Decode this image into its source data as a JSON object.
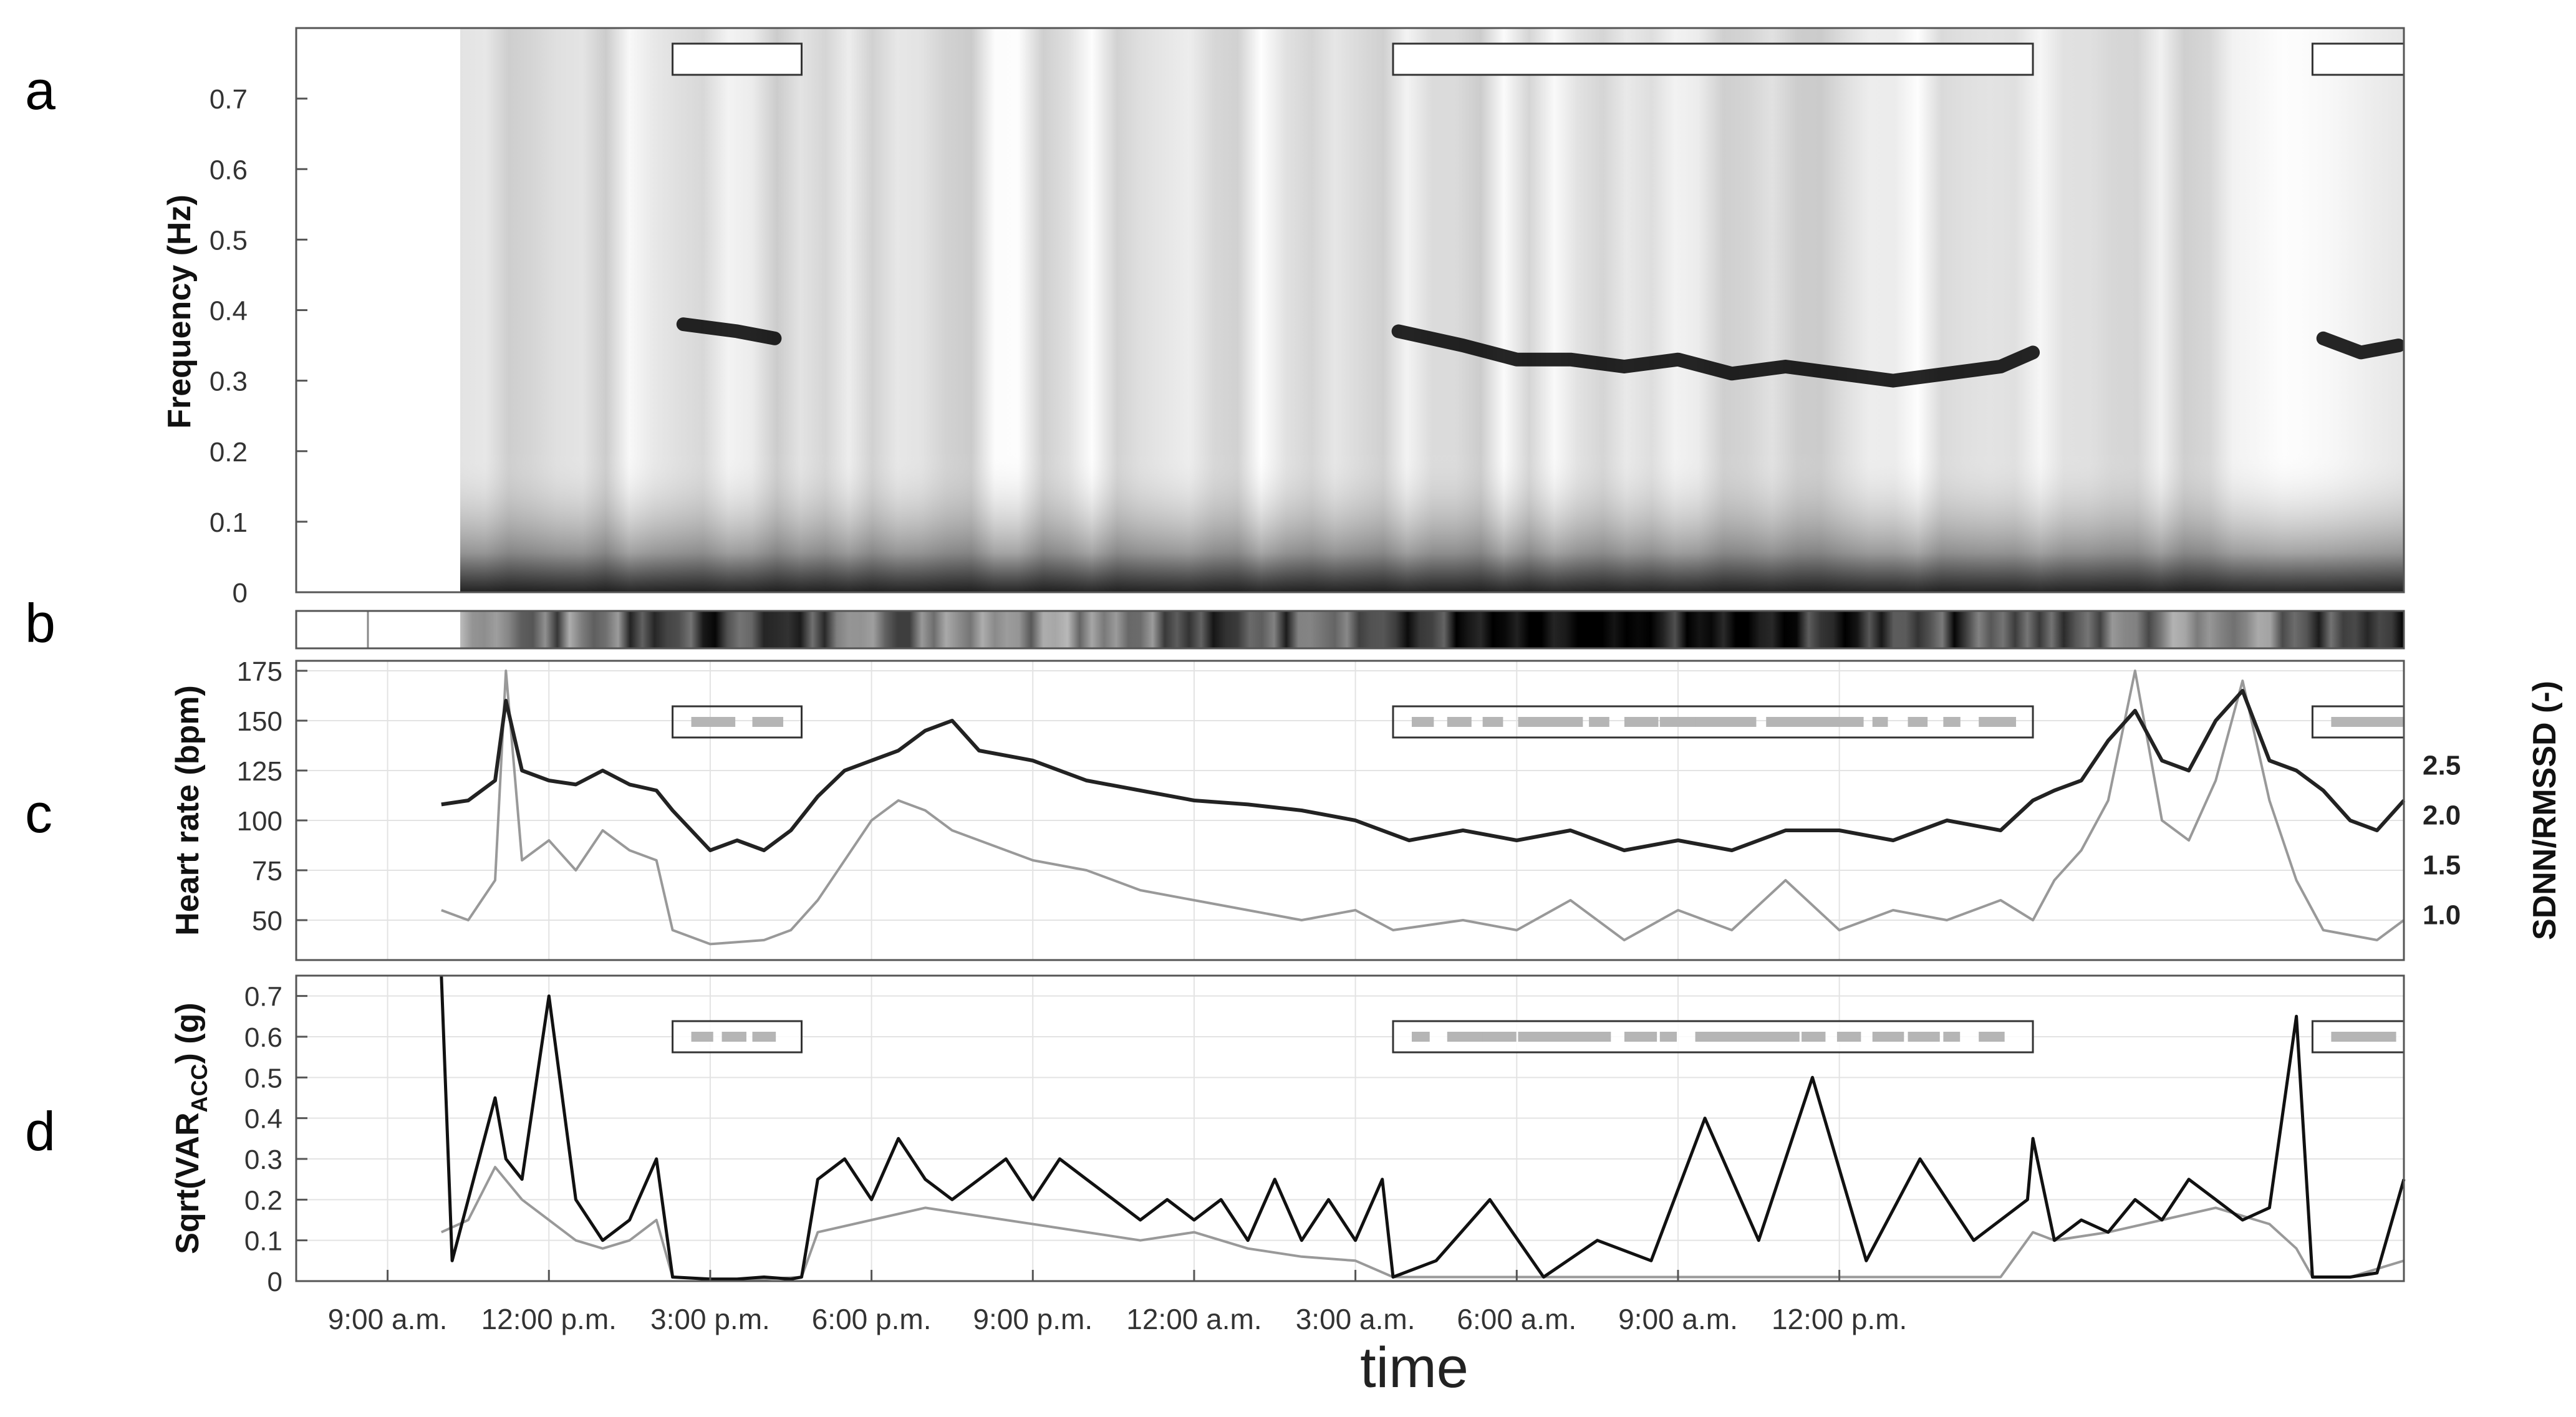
{
  "panel_letters": [
    "a",
    "b",
    "c",
    "d"
  ],
  "xlabel": "time",
  "time_ticks": [
    "9:00 a.m.",
    "12:00 p.m.",
    "3:00 p.m.",
    "6:00 p.m.",
    "9:00 p.m.",
    "12:00 a.m.",
    "3:00 a.m.",
    "6:00 a.m.",
    "9:00 a.m.",
    "12:00 p.m."
  ],
  "sleep_boxes": [
    [
      14.3,
      16.7
    ],
    [
      27.7,
      39.6
    ],
    [
      44.8,
      46.5
    ]
  ],
  "chart_data": [
    {
      "type": "heatmap",
      "panel": "a",
      "ylabel": "Frequency (Hz)",
      "ylim": [
        0,
        0.8
      ],
      "yticks": [
        "0",
        "0.1",
        "0.2",
        "0.3",
        "0.4",
        "0.5",
        "0.6",
        "0.7"
      ],
      "x_unit": "hours from 6:00 a.m. day 1",
      "xlim": [
        7.3,
        46.5
      ],
      "data_start": 10.0,
      "respiratory_band": {
        "x": [
          14.5,
          15.5,
          16.2,
          27.8,
          29.0,
          30.0,
          31.0,
          32.0,
          33.0,
          34.0,
          35.0,
          36.0,
          37.0,
          38.0,
          39.0,
          39.6,
          45.0,
          45.7,
          46.4
        ],
        "frequency_hz": [
          0.38,
          0.37,
          0.36,
          0.37,
          0.35,
          0.33,
          0.33,
          0.32,
          0.33,
          0.31,
          0.32,
          0.31,
          0.3,
          0.31,
          0.32,
          0.34,
          0.36,
          0.34,
          0.35
        ]
      },
      "grid": false
    },
    {
      "type": "heatmap",
      "panel": "b",
      "xlim": [
        7.3,
        46.5
      ],
      "intensity_x": [
        10,
        13,
        15,
        18,
        21,
        24,
        27,
        30,
        33,
        36,
        39,
        42,
        44.5,
        46
      ],
      "intensity": [
        0.5,
        0.6,
        0.8,
        0.6,
        0.5,
        0.7,
        0.7,
        0.9,
        0.9,
        0.85,
        0.7,
        0.5,
        0.6,
        0.95
      ]
    },
    {
      "type": "line",
      "panel": "c",
      "ylabel": "Heart rate (bpm)",
      "ylim": [
        30,
        180
      ],
      "yticks": [
        "50",
        "75",
        "100",
        "125",
        "150",
        "175"
      ],
      "y2label": "SDNN/RMSSD (-)",
      "y2ticks": [
        "1.0",
        "1.5",
        "2.0",
        "2.5"
      ],
      "y2_values": [
        1.0,
        1.5,
        2.0,
        2.5
      ],
      "y2_positions_bpm": [
        53,
        78,
        103,
        128
      ],
      "grid": true,
      "series": [
        {
          "color": "#222222",
          "x": [
            10.0,
            10.5,
            11.0,
            11.2,
            11.5,
            12.0,
            12.5,
            13.0,
            13.5,
            14.0,
            14.3,
            15.0,
            15.5,
            16.0,
            16.5,
            17.0,
            17.5,
            18.0,
            18.5,
            19.0,
            19.5,
            20.0,
            21.0,
            22.0,
            23.0,
            24.0,
            25.0,
            26.0,
            27.0,
            28.0,
            29.0,
            30.0,
            31.0,
            32.0,
            33.0,
            34.0,
            35.0,
            36.0,
            37.0,
            38.0,
            39.0,
            39.6,
            40.0,
            40.5,
            41.0,
            41.5,
            42.0,
            42.5,
            43.0,
            43.5,
            44.0,
            44.5,
            45.0,
            45.5,
            46.0,
            46.5
          ],
          "values": [
            108,
            110,
            120,
            160,
            125,
            120,
            118,
            125,
            118,
            115,
            105,
            85,
            90,
            85,
            95,
            112,
            125,
            130,
            135,
            145,
            150,
            135,
            130,
            120,
            115,
            110,
            108,
            105,
            100,
            90,
            95,
            90,
            95,
            85,
            90,
            85,
            95,
            95,
            90,
            100,
            95,
            110,
            115,
            120,
            140,
            155,
            130,
            125,
            150,
            165,
            130,
            125,
            115,
            100,
            95,
            110
          ]
        },
        {
          "color": "#999999",
          "x": [
            10.0,
            10.5,
            11.0,
            11.2,
            11.5,
            12.0,
            12.5,
            13.0,
            13.5,
            14.0,
            14.3,
            15.0,
            16.0,
            16.5,
            17.0,
            17.5,
            18.0,
            18.5,
            19.0,
            19.5,
            20.0,
            21.0,
            22.0,
            23.0,
            24.0,
            25.0,
            26.0,
            27.0,
            27.7,
            29.0,
            30.0,
            31.0,
            32.0,
            33.0,
            34.0,
            35.0,
            36.0,
            37.0,
            38.0,
            39.0,
            39.6,
            40.0,
            40.5,
            41.0,
            41.5,
            42.0,
            42.5,
            43.0,
            43.5,
            44.0,
            44.5,
            45.0,
            46.0,
            46.5
          ],
          "values": [
            55,
            50,
            70,
            175,
            80,
            90,
            75,
            95,
            85,
            80,
            45,
            38,
            40,
            45,
            60,
            80,
            100,
            110,
            105,
            95,
            90,
            80,
            75,
            65,
            60,
            55,
            50,
            55,
            45,
            50,
            45,
            60,
            40,
            55,
            45,
            70,
            45,
            55,
            50,
            60,
            50,
            70,
            85,
            110,
            175,
            100,
            90,
            120,
            170,
            110,
            70,
            45,
            40,
            50
          ]
        }
      ]
    },
    {
      "type": "line",
      "panel": "d",
      "ylabel": "Sqrt(VAR",
      "ylabel_sub": "ACC",
      "ylabel_end": ") (g)",
      "ylim": [
        0,
        0.75
      ],
      "yticks": [
        "0",
        "0.1",
        "0.2",
        "0.3",
        "0.4",
        "0.5",
        "0.6",
        "0.7"
      ],
      "grid": true,
      "series": [
        {
          "color": "#999999",
          "x": [
            10.0,
            10.5,
            11.0,
            11.5,
            12.0,
            12.5,
            13.0,
            13.5,
            14.0,
            14.3,
            15.0,
            16.0,
            16.7,
            17.0,
            18.0,
            19.0,
            20.0,
            21.0,
            22.0,
            23.0,
            24.0,
            25.0,
            26.0,
            27.0,
            27.7,
            30.0,
            33.0,
            36.0,
            39.0,
            39.6,
            40.0,
            41.0,
            42.0,
            43.0,
            44.0,
            44.5,
            44.8,
            45.5,
            46.5
          ],
          "values": [
            0.12,
            0.15,
            0.28,
            0.2,
            0.15,
            0.1,
            0.08,
            0.1,
            0.15,
            0.01,
            0.005,
            0.005,
            0.01,
            0.12,
            0.15,
            0.18,
            0.16,
            0.14,
            0.12,
            0.1,
            0.12,
            0.08,
            0.06,
            0.05,
            0.01,
            0.01,
            0.01,
            0.01,
            0.01,
            0.12,
            0.1,
            0.12,
            0.15,
            0.18,
            0.14,
            0.08,
            0.01,
            0.01,
            0.05
          ]
        },
        {
          "color": "#111111",
          "x": [
            10.0,
            10.2,
            10.5,
            11.0,
            11.2,
            11.5,
            12.0,
            12.5,
            13.0,
            13.5,
            14.0,
            14.3,
            15.0,
            15.5,
            16.0,
            16.5,
            16.7,
            17.0,
            17.5,
            18.0,
            18.5,
            19.0,
            19.5,
            20.0,
            20.5,
            21.0,
            21.5,
            22.0,
            22.5,
            23.0,
            23.5,
            24.0,
            24.5,
            25.0,
            25.5,
            26.0,
            26.5,
            27.0,
            27.5,
            27.7,
            28.5,
            29.5,
            30.5,
            31.5,
            32.5,
            33.5,
            34.5,
            35.5,
            36.5,
            37.5,
            38.5,
            39.5,
            39.6,
            40.0,
            40.5,
            41.0,
            41.5,
            42.0,
            42.5,
            43.0,
            43.5,
            44.0,
            44.5,
            44.8,
            45.5,
            46.0,
            46.5
          ],
          "values": [
            0.75,
            0.05,
            0.2,
            0.45,
            0.3,
            0.25,
            0.7,
            0.2,
            0.1,
            0.15,
            0.3,
            0.01,
            0.005,
            0.005,
            0.01,
            0.005,
            0.01,
            0.25,
            0.3,
            0.2,
            0.35,
            0.25,
            0.2,
            0.25,
            0.3,
            0.2,
            0.3,
            0.25,
            0.2,
            0.15,
            0.2,
            0.15,
            0.2,
            0.1,
            0.25,
            0.1,
            0.2,
            0.1,
            0.25,
            0.01,
            0.05,
            0.2,
            0.01,
            0.1,
            0.05,
            0.4,
            0.1,
            0.5,
            0.05,
            0.3,
            0.1,
            0.2,
            0.35,
            0.1,
            0.15,
            0.12,
            0.2,
            0.15,
            0.25,
            0.2,
            0.15,
            0.18,
            0.65,
            0.01,
            0.01,
            0.02,
            0.25
          ]
        }
      ]
    }
  ]
}
